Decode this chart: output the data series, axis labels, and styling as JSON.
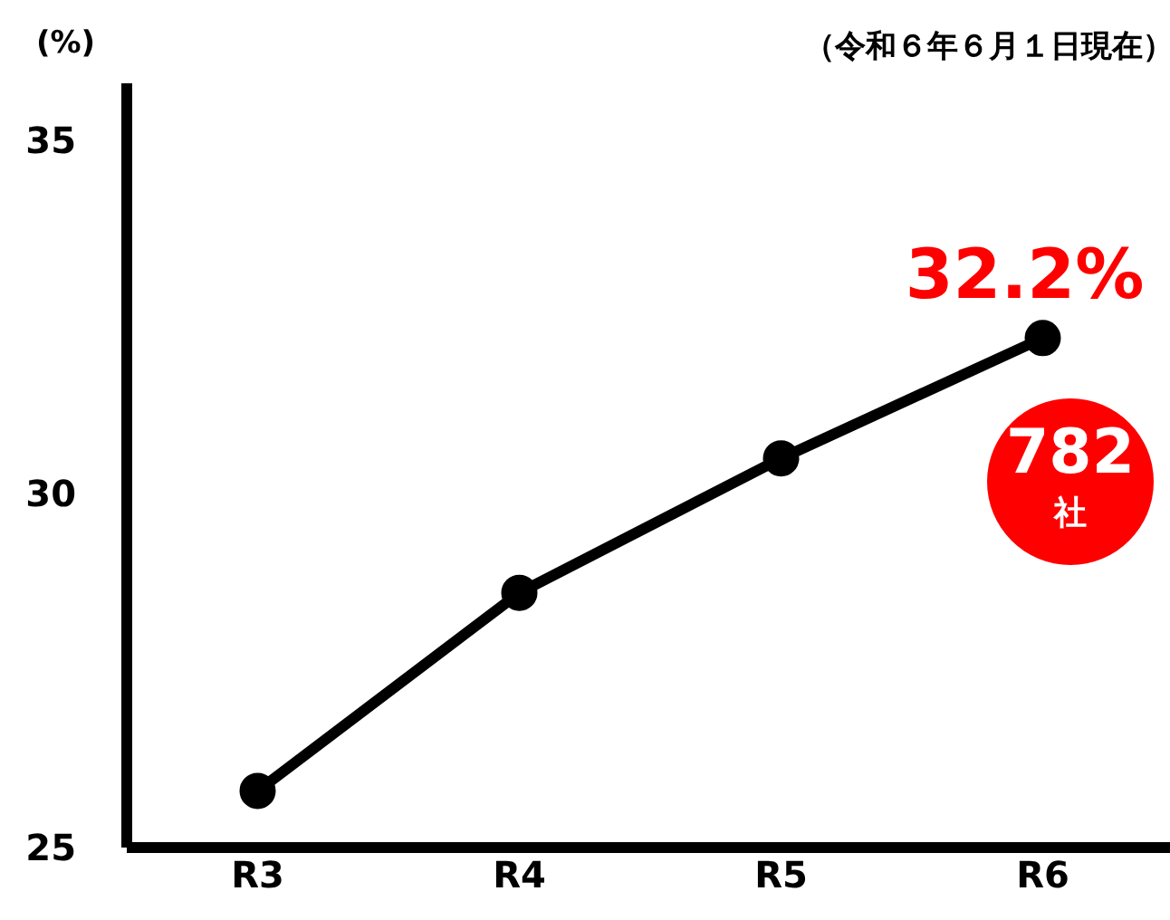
{
  "chart_data": {
    "type": "line",
    "ylabel": "(%)",
    "subtitle": "（令和６年６月１日現在）",
    "categories": [
      "R3",
      "R4",
      "R5",
      "R6"
    ],
    "series": [
      {
        "color": "#000000",
        "values": [
          25.8,
          28.6,
          30.5,
          32.2
        ],
        "value_labels": [
          null,
          null,
          null,
          "32.2%"
        ]
      }
    ],
    "ylim": [
      25,
      35.8
    ],
    "yticks": [
      25,
      30,
      35
    ],
    "marker": "circle",
    "line_style": "solid",
    "annotations": [
      "782",
      "社"
    ]
  }
}
